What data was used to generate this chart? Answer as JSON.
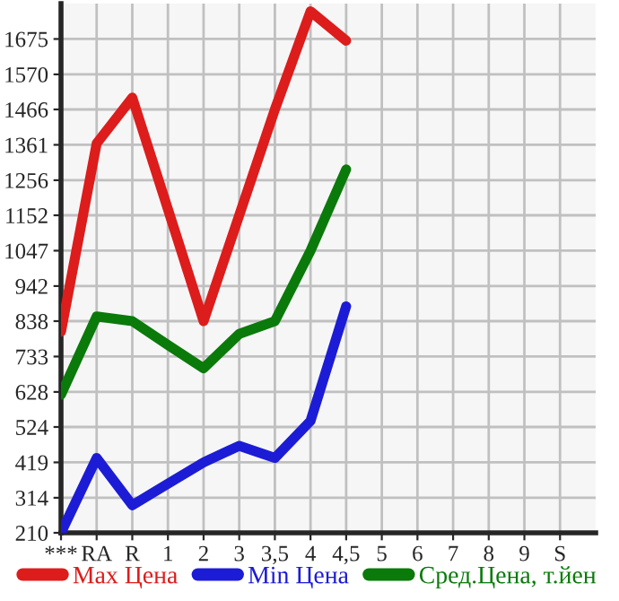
{
  "chart_data": {
    "type": "line",
    "categories": [
      "***",
      "RA",
      "R",
      "1",
      "2",
      "3",
      "3,5",
      "4",
      "4,5",
      "5",
      "6",
      "7",
      "8",
      "9",
      "S"
    ],
    "series": [
      {
        "name": "Max Цена",
        "color": "#dd1c1c",
        "values": [
          807,
          1365,
          1501,
          1170,
          838,
          1152,
          1466,
          1757,
          1670,
          null,
          null,
          null,
          null,
          null,
          null
        ]
      },
      {
        "name": "Min Цена",
        "color": "#1c1cd6",
        "values": [
          210,
          432,
          292,
          356,
          419,
          468,
          432,
          542,
          882,
          null,
          null,
          null,
          null,
          null,
          null
        ]
      },
      {
        "name": "Сред.Цена, т.йен",
        "color": "#0a7a0a",
        "values": [
          620,
          852,
          838,
          767,
          698,
          800,
          838,
          1047,
          1288,
          null,
          null,
          null,
          null,
          null,
          null
        ]
      }
    ],
    "ylim": [
      210,
      1780
    ],
    "yticks": [
      210,
      314,
      419,
      524,
      628,
      733,
      838,
      942,
      1047,
      1152,
      1256,
      1361,
      1466,
      1570,
      1675
    ],
    "grid": true,
    "legend": "bottom",
    "marker": "none",
    "line_style": "solid"
  }
}
